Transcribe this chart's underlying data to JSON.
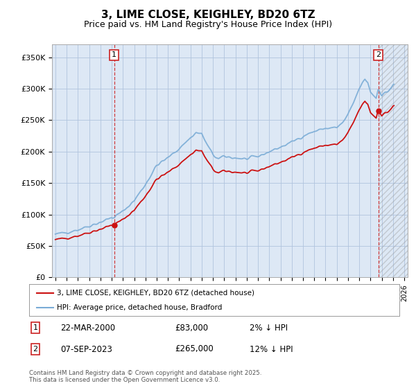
{
  "title": "3, LIME CLOSE, KEIGHLEY, BD20 6TZ",
  "subtitle": "Price paid vs. HM Land Registry's House Price Index (HPI)",
  "title_fontsize": 11,
  "subtitle_fontsize": 9,
  "background_color": "#ffffff",
  "plot_bg_color": "#dde8f5",
  "grid_color": "#b0c4de",
  "hpi_color": "#7aacd6",
  "price_color": "#cc1111",
  "sale_dot_color": "#cc1111",
  "hatch_color": "#b0b0b0",
  "ylim": [
    0,
    370000
  ],
  "yticks": [
    0,
    50000,
    100000,
    150000,
    200000,
    250000,
    300000,
    350000
  ],
  "ytick_labels": [
    "£0",
    "£50K",
    "£100K",
    "£150K",
    "£200K",
    "£250K",
    "£300K",
    "£350K"
  ],
  "xlim_start": 1994.7,
  "xlim_end": 2026.3,
  "legend_items": [
    "3, LIME CLOSE, KEIGHLEY, BD20 6TZ (detached house)",
    "HPI: Average price, detached house, Bradford"
  ],
  "sale1_date": "22-MAR-2000",
  "sale1_price": 83000,
  "sale1_hpi_diff": "2% ↓ HPI",
  "sale1_label": "1",
  "sale1_x": 2000.22,
  "sale2_date": "07-SEP-2023",
  "sale2_price": 265000,
  "sale2_hpi_diff": "12% ↓ HPI",
  "sale2_label": "2",
  "sale2_x": 2023.69,
  "footnote": "Contains HM Land Registry data © Crown copyright and database right 2025.\nThis data is licensed under the Open Government Licence v3.0."
}
